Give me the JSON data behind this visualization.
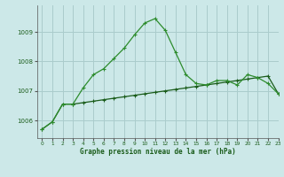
{
  "title": "Graphe pression niveau de la mer (hPa)",
  "background_color": "#cce8e8",
  "grid_color": "#aacccc",
  "line_color_dark": "#1a5c1a",
  "line_color_medium": "#2d8c2d",
  "xlim": [
    -0.5,
    23
  ],
  "ylim": [
    1005.4,
    1009.9
  ],
  "yticks": [
    1006,
    1007,
    1008,
    1009
  ],
  "xticks": [
    0,
    1,
    2,
    3,
    4,
    5,
    6,
    7,
    8,
    9,
    10,
    11,
    12,
    13,
    14,
    15,
    16,
    17,
    18,
    19,
    20,
    21,
    22,
    23
  ],
  "series1_x": [
    0,
    1,
    2,
    3,
    4,
    5,
    6,
    7,
    8,
    9,
    10,
    11,
    12,
    13,
    14,
    15,
    16,
    17,
    18,
    19,
    20,
    21,
    22,
    23
  ],
  "series1_y": [
    1005.7,
    1005.95,
    1006.55,
    1006.55,
    1006.6,
    1006.65,
    1006.7,
    1006.75,
    1006.8,
    1006.85,
    1006.9,
    1006.95,
    1007.0,
    1007.05,
    1007.1,
    1007.15,
    1007.2,
    1007.25,
    1007.3,
    1007.35,
    1007.4,
    1007.45,
    1007.5,
    1006.9
  ],
  "series2_x": [
    0,
    1,
    2,
    3,
    4,
    5,
    6,
    7,
    8,
    9,
    10,
    11,
    12,
    13,
    14,
    15,
    16,
    17,
    18,
    19,
    20,
    21,
    22,
    23
  ],
  "series2_y": [
    1005.7,
    1005.95,
    1006.55,
    1006.55,
    1007.1,
    1007.55,
    1007.75,
    1008.1,
    1008.45,
    1008.9,
    1009.3,
    1009.45,
    1009.05,
    1008.3,
    1007.55,
    1007.25,
    1007.2,
    1007.35,
    1007.35,
    1007.2,
    1007.55,
    1007.45,
    1007.25,
    1006.9
  ]
}
